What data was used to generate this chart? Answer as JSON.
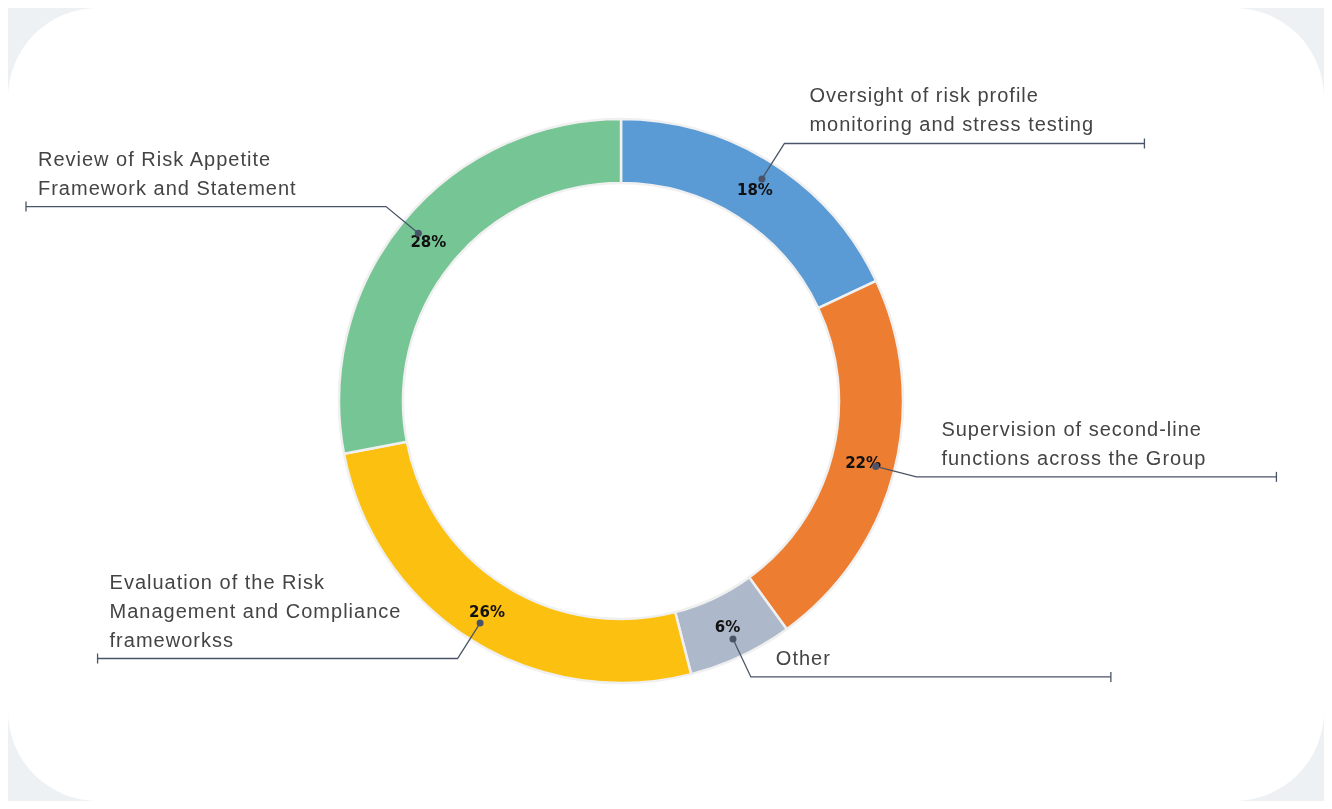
{
  "chart_data": {
    "type": "donut",
    "categories": [
      "Oversight of risk profile monitoring and stress testing",
      "Supervision of second-line functions across the Group",
      "Other",
      "Evaluation of the Risk Management and Compliance frameworkss",
      "Review of Risk Appetite Framework and Statement"
    ],
    "values": [
      18,
      22,
      6,
      26,
      28
    ],
    "value_labels": [
      "18%",
      "22%",
      "6%",
      "26%",
      "28%"
    ],
    "colors": [
      "#5b9bd5",
      "#ed7d31",
      "#adb9ca",
      "#fcc010",
      "#76c594"
    ]
  }
}
